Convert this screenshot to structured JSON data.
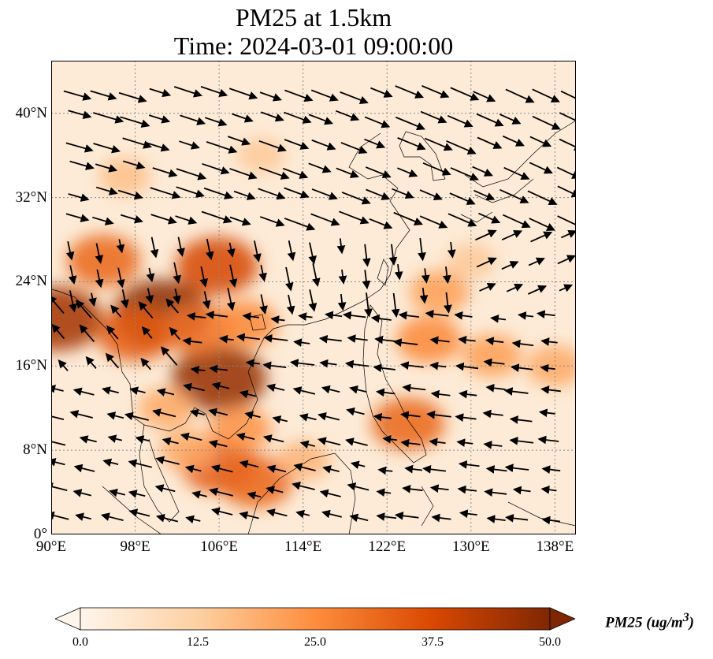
{
  "title_line1": "PM25 at 1.5km",
  "title_line2": "Time: 2024-03-01 09:00:00",
  "lat_ticks": [
    "0°",
    "8°N",
    "16°N",
    "24°N",
    "32°N",
    "40°N"
  ],
  "lon_ticks": [
    "90°E",
    "98°E",
    "106°E",
    "114°E",
    "122°E",
    "130°E",
    "138°E"
  ],
  "colorbar": {
    "label": "PM25 (ug/m",
    "label_sup": "3",
    "label_end": ")",
    "ticks": [
      "0.0",
      "12.5",
      "25.0",
      "37.5",
      "50.0"
    ],
    "colors": [
      "#fff5eb",
      "#fdd0a2",
      "#fd8d3c",
      "#d94801",
      "#7f2704"
    ]
  },
  "map": {
    "lon_range": [
      90,
      140
    ],
    "lat_range": [
      0,
      45
    ],
    "hotspots": [
      {
        "lon": 90.5,
        "lat": 20.5,
        "value": 45
      },
      {
        "lon": 100.5,
        "lat": 21.0,
        "value": 48
      },
      {
        "lon": 106.0,
        "lat": 14.8,
        "value": 47
      },
      {
        "lon": 105.8,
        "lat": 25.5,
        "value": 38
      },
      {
        "lon": 95.0,
        "lat": 26.0,
        "value": 32
      },
      {
        "lon": 98.0,
        "lat": 19.0,
        "value": 34
      },
      {
        "lon": 104.0,
        "lat": 19.5,
        "value": 30
      },
      {
        "lon": 108.5,
        "lat": 20.0,
        "value": 26
      },
      {
        "lon": 106.0,
        "lat": 6.5,
        "value": 34
      },
      {
        "lon": 109.5,
        "lat": 5.0,
        "value": 32
      },
      {
        "lon": 108.0,
        "lat": 10.0,
        "value": 24
      },
      {
        "lon": 126.0,
        "lat": 18.5,
        "value": 26
      },
      {
        "lon": 124.0,
        "lat": 10.5,
        "value": 32
      },
      {
        "lon": 132.0,
        "lat": 17.0,
        "value": 22
      },
      {
        "lon": 138.0,
        "lat": 16.0,
        "value": 20
      },
      {
        "lon": 127.0,
        "lat": 23.0,
        "value": 22
      },
      {
        "lon": 101.0,
        "lat": 12.0,
        "value": 20
      },
      {
        "lon": 103.0,
        "lat": 8.0,
        "value": 20
      },
      {
        "lon": 114.0,
        "lat": 7.0,
        "value": 18
      },
      {
        "lon": 97.0,
        "lat": 34.0,
        "value": 16
      },
      {
        "lon": 110.0,
        "lat": 36.0,
        "value": 14
      },
      {
        "lon": 130.0,
        "lat": 26.0,
        "value": 14
      }
    ]
  }
}
